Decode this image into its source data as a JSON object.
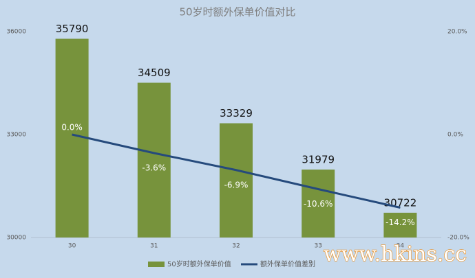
{
  "chart_data": {
    "type": "bar-line",
    "title": "50岁时额外保单价值对比",
    "categories": [
      "30",
      "31",
      "32",
      "33",
      "34"
    ],
    "series": [
      {
        "name": "50岁时额外保单价值",
        "color": "#77933c",
        "values": [
          35790,
          34509,
          33329,
          31979,
          30722
        ]
      },
      {
        "name": "额外保单价值差别",
        "color": "#254a7c",
        "axis": "y2",
        "values": [
          0.0,
          -3.6,
          -6.9,
          -10.6,
          -14.2
        ],
        "value_labels": [
          "0.0%",
          "-3.6%",
          "-6.9%",
          "-10.6%",
          "-14.2%"
        ]
      }
    ],
    "ylim": [
      30000,
      36000
    ],
    "yticks": [
      30000,
      33000,
      36000
    ],
    "y2lim": [
      -20,
      20
    ],
    "y2ticks": [
      {
        "value": -20,
        "label": "-20.0%"
      },
      {
        "value": 0,
        "label": "0.0%"
      },
      {
        "value": 20,
        "label": "20.0%"
      }
    ],
    "grid": false,
    "legend": "bottom",
    "watermark": "www.hkins.cc"
  }
}
